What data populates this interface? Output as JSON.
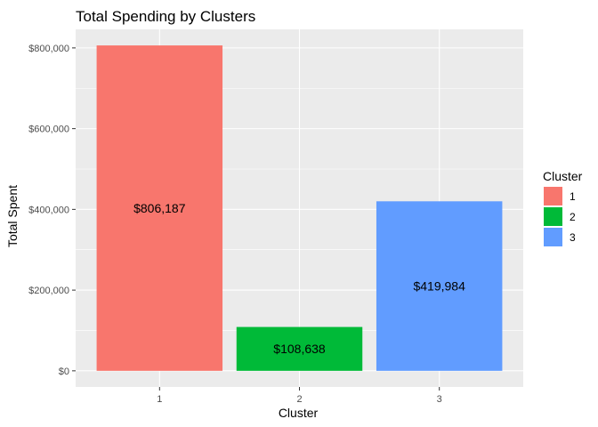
{
  "chart_data": {
    "type": "bar",
    "title": "Total Spending by Clusters",
    "xlabel": "Cluster",
    "ylabel": "Total Spent",
    "categories": [
      "1",
      "2",
      "3"
    ],
    "values": [
      806187,
      108638,
      419984
    ],
    "value_labels": [
      "$806,187",
      "$108,638",
      "$419,984"
    ],
    "colors": [
      "#F8766D",
      "#00BA38",
      "#619CFF"
    ],
    "ylim": [
      -40000,
      846000
    ],
    "y_ticks": [
      0,
      200000,
      400000,
      600000,
      800000
    ],
    "y_tick_labels": [
      "$0",
      "$200,000",
      "$400,000",
      "$600,000",
      "$800,000"
    ],
    "grid": true,
    "panel_background": "#EBEBEB",
    "legend": {
      "title": "Cluster",
      "position": "right",
      "entries": [
        "1",
        "2",
        "3"
      ]
    }
  }
}
